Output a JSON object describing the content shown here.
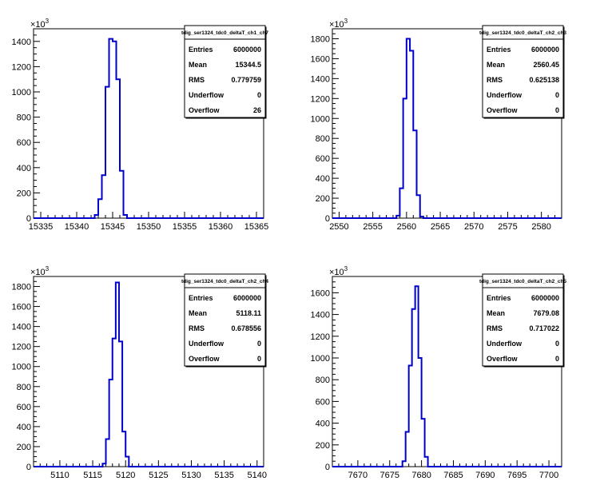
{
  "chart_data": [
    {
      "type": "histogram",
      "title": "tdig_ser1324_tdc0_deltaT_ch1_ch7",
      "exponent": "10",
      "exponent_power": "3",
      "xlim": [
        15334,
        15366
      ],
      "ylim": [
        0,
        1500
      ],
      "xticks": [
        15335,
        15340,
        15345,
        15350,
        15355,
        15360,
        15365
      ],
      "yticks": [
        0,
        200,
        400,
        600,
        800,
        1000,
        1200,
        1400
      ],
      "bins": [
        {
          "x": 15342.0,
          "y": 0
        },
        {
          "x": 15342.5,
          "y": 25
        },
        {
          "x": 15343.0,
          "y": 150
        },
        {
          "x": 15343.5,
          "y": 340
        },
        {
          "x": 15344.0,
          "y": 1040
        },
        {
          "x": 15344.5,
          "y": 1420
        },
        {
          "x": 15345.0,
          "y": 1400
        },
        {
          "x": 15345.5,
          "y": 1100
        },
        {
          "x": 15346.0,
          "y": 375
        },
        {
          "x": 15346.5,
          "y": 25
        },
        {
          "x": 15347.0,
          "y": 0
        }
      ],
      "stats": {
        "labels": [
          "Entries",
          "Mean",
          "RMS",
          "Underflow",
          "Overflow"
        ],
        "values": [
          "6000000",
          "15344.5",
          "0.779759",
          "0",
          "26"
        ]
      }
    },
    {
      "type": "histogram",
      "title": "tdig_ser1324_tdc0_deltaT_ch2_ch3",
      "exponent": "10",
      "exponent_power": "3",
      "xlim": [
        2549,
        2583
      ],
      "ylim": [
        0,
        1900
      ],
      "xticks": [
        2550,
        2555,
        2560,
        2565,
        2570,
        2575,
        2580
      ],
      "yticks": [
        0,
        200,
        400,
        600,
        800,
        1000,
        1200,
        1400,
        1600,
        1800
      ],
      "bins": [
        {
          "x": 2558.0,
          "y": 0
        },
        {
          "x": 2558.5,
          "y": 25
        },
        {
          "x": 2559.0,
          "y": 300
        },
        {
          "x": 2559.5,
          "y": 1200
        },
        {
          "x": 2560.0,
          "y": 1800
        },
        {
          "x": 2560.5,
          "y": 1680
        },
        {
          "x": 2561.0,
          "y": 880
        },
        {
          "x": 2561.5,
          "y": 230
        },
        {
          "x": 2562.0,
          "y": 15
        },
        {
          "x": 2562.5,
          "y": 0
        }
      ],
      "stats": {
        "labels": [
          "Entries",
          "Mean",
          "RMS",
          "Underflow",
          "Overflow"
        ],
        "values": [
          "6000000",
          "2560.45",
          "0.625138",
          "0",
          "0"
        ]
      }
    },
    {
      "type": "histogram",
      "title": "tdig_ser1324_tdc0_deltaT_ch2_ch4",
      "exponent": "10",
      "exponent_power": "3",
      "xlim": [
        5106,
        5141
      ],
      "ylim": [
        0,
        1900
      ],
      "xticks": [
        5110,
        5115,
        5120,
        5125,
        5130,
        5135,
        5140
      ],
      "yticks": [
        0,
        200,
        400,
        600,
        800,
        1000,
        1200,
        1400,
        1600,
        1800
      ],
      "bins": [
        {
          "x": 5116.0,
          "y": 0
        },
        {
          "x": 5116.5,
          "y": 30
        },
        {
          "x": 5117.0,
          "y": 275
        },
        {
          "x": 5117.5,
          "y": 870
        },
        {
          "x": 5118.0,
          "y": 1280
        },
        {
          "x": 5118.5,
          "y": 1840
        },
        {
          "x": 5119.0,
          "y": 1250
        },
        {
          "x": 5119.5,
          "y": 350
        },
        {
          "x": 5120.0,
          "y": 100
        },
        {
          "x": 5120.5,
          "y": 0
        }
      ],
      "stats": {
        "labels": [
          "Entries",
          "Mean",
          "RMS",
          "Underflow",
          "Overflow"
        ],
        "values": [
          "6000000",
          "5118.11",
          "0.678556",
          "0",
          "0"
        ]
      }
    },
    {
      "type": "histogram",
      "title": "tdig_ser1324_tdc0_deltaT_ch2_ch5",
      "exponent": "10",
      "exponent_power": "3",
      "xlim": [
        7666,
        7702
      ],
      "ylim": [
        0,
        1750
      ],
      "xticks": [
        7670,
        7675,
        7680,
        7685,
        7690,
        7695,
        7700
      ],
      "yticks": [
        0,
        200,
        400,
        600,
        800,
        1000,
        1200,
        1400,
        1600
      ],
      "bins": [
        {
          "x": 7676.5,
          "y": 0
        },
        {
          "x": 7677.0,
          "y": 50
        },
        {
          "x": 7677.5,
          "y": 320
        },
        {
          "x": 7678.0,
          "y": 930
        },
        {
          "x": 7678.5,
          "y": 1450
        },
        {
          "x": 7679.0,
          "y": 1660
        },
        {
          "x": 7679.5,
          "y": 1000
        },
        {
          "x": 7680.0,
          "y": 440
        },
        {
          "x": 7680.5,
          "y": 90
        },
        {
          "x": 7681.0,
          "y": 0
        }
      ],
      "stats": {
        "labels": [
          "Entries",
          "Mean",
          "RMS",
          "Underflow",
          "Overflow"
        ],
        "values": [
          "6000000",
          "7679.08",
          "0.717022",
          "0",
          "0"
        ]
      }
    }
  ],
  "colors": {
    "line": "#0000cc",
    "axis": "#000000",
    "background": "#ffffff"
  }
}
